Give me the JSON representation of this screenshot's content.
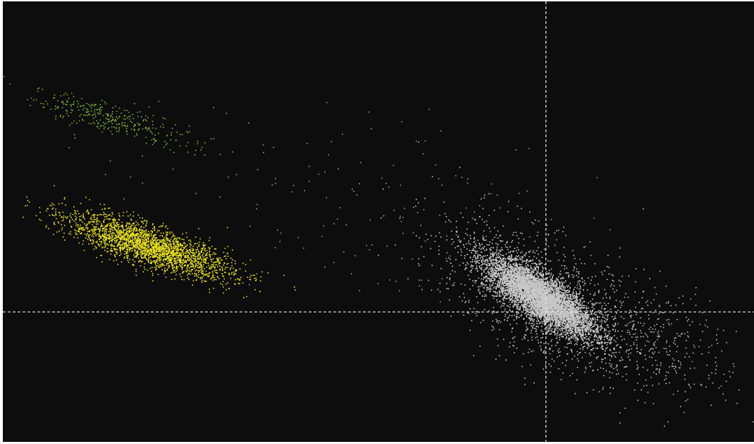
{
  "chart_data": {
    "type": "scatter",
    "title": "",
    "xlabel": "",
    "ylabel": "",
    "xlim": [
      0,
      100
    ],
    "ylim": [
      0,
      100
    ],
    "grid": false,
    "legend": "none",
    "background_color": "#0d0d0d",
    "gates": [
      {
        "name": "vertical-gate",
        "axis": "x",
        "value": 72.3,
        "color": "#e8e8e8"
      },
      {
        "name": "horizontal-gate",
        "axis": "y",
        "value": 29.5,
        "color": "#e8e8e8"
      }
    ],
    "clusters": [
      {
        "name": "green-population",
        "color": "#7fb23a",
        "center": [
          14.2,
          73.5
        ],
        "sd": [
          5.2,
          3.0
        ],
        "rho": -0.82,
        "count": 320
      },
      {
        "name": "yellow-population",
        "color": "#e8e020",
        "center": [
          19.5,
          44.5
        ],
        "sd": [
          5.4,
          3.6
        ],
        "rho": -0.78,
        "count": 2600
      },
      {
        "name": "white-core-population",
        "color": "#c9c9c9",
        "center": [
          71.5,
          33.0
        ],
        "sd": [
          3.6,
          4.4
        ],
        "rho": -0.8,
        "count": 9000
      },
      {
        "name": "white-halo-population",
        "color": "#c4c4c4",
        "center": [
          71.8,
          32.5
        ],
        "sd": [
          7.0,
          9.0
        ],
        "rho": -0.6,
        "count": 1400
      },
      {
        "name": "right-tail-population",
        "color": "#bdbdbd",
        "center": [
          88.0,
          23.0
        ],
        "sd": [
          5.0,
          7.0
        ],
        "rho": -0.45,
        "count": 280
      },
      {
        "name": "diagonal-scatter-population",
        "color": "#9e9e9e",
        "center": [
          47.0,
          52.0
        ],
        "sd": [
          16.0,
          14.0
        ],
        "rho": -0.55,
        "count": 170
      }
    ]
  }
}
